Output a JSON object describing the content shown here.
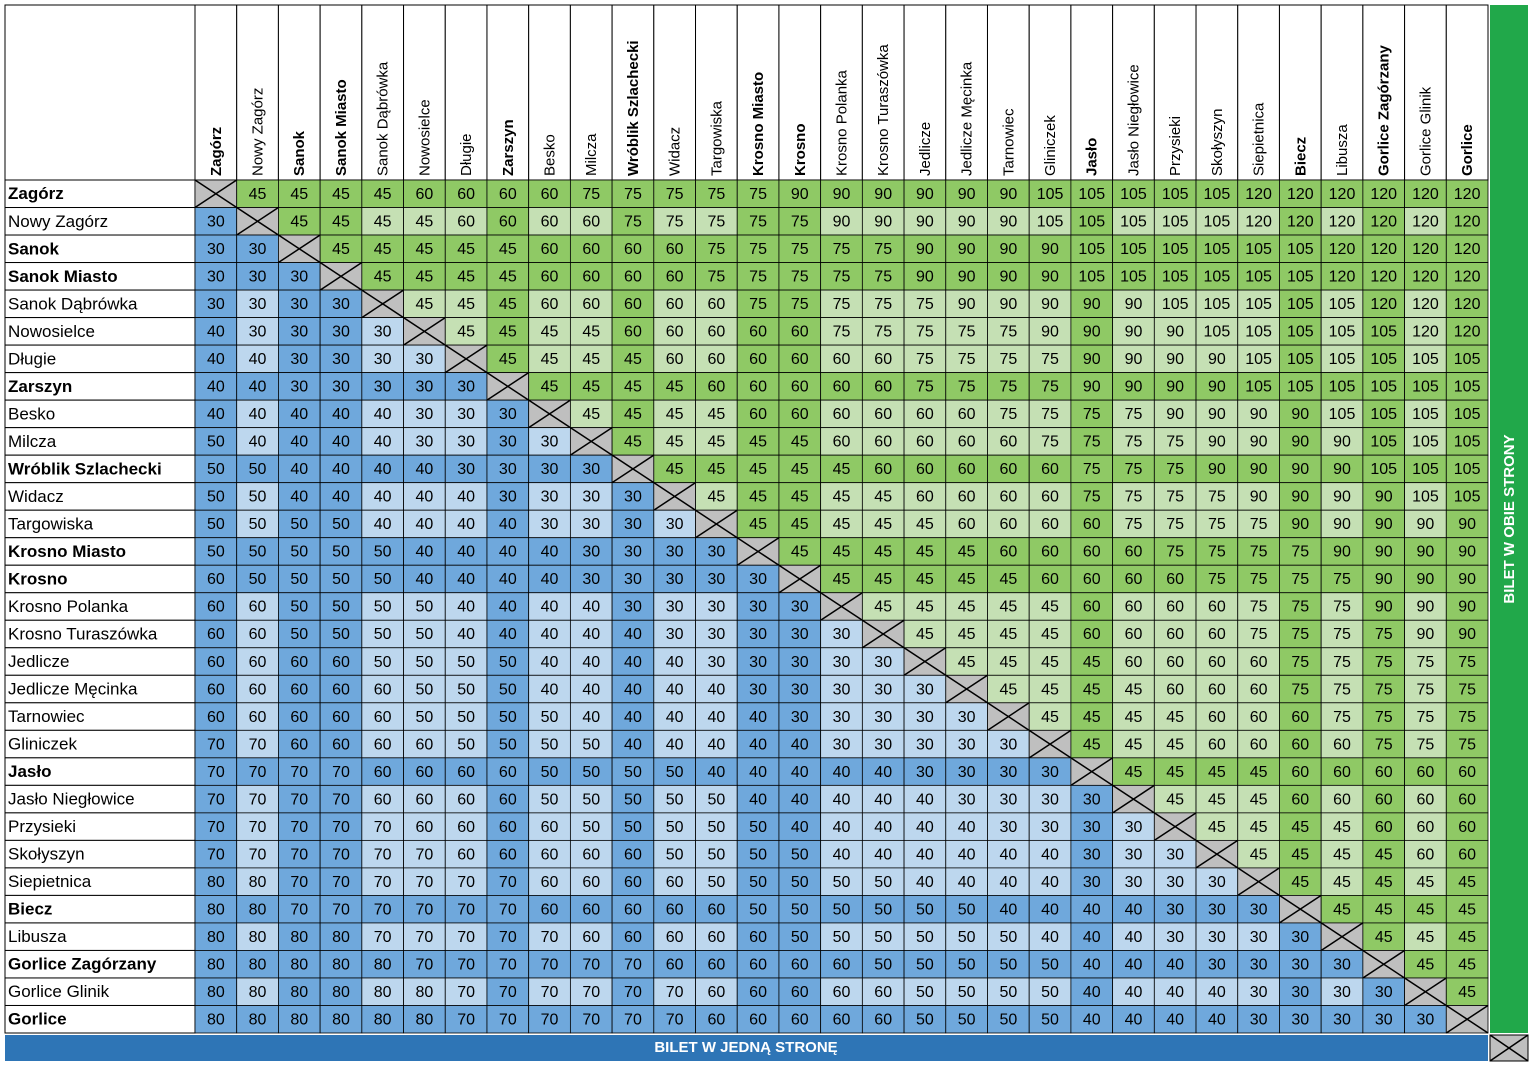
{
  "stations": [
    {
      "name": "Zagórz",
      "bold": true
    },
    {
      "name": "Nowy Zagórz",
      "bold": false
    },
    {
      "name": "Sanok",
      "bold": true
    },
    {
      "name": "Sanok Miasto",
      "bold": true
    },
    {
      "name": "Sanok Dąbrówka",
      "bold": false
    },
    {
      "name": "Nowosielce",
      "bold": false
    },
    {
      "name": "Długie",
      "bold": false
    },
    {
      "name": "Zarszyn",
      "bold": true
    },
    {
      "name": "Besko",
      "bold": false
    },
    {
      "name": "Milcza",
      "bold": false
    },
    {
      "name": "Wróblik Szlachecki",
      "bold": true
    },
    {
      "name": "Widacz",
      "bold": false
    },
    {
      "name": "Targowiska",
      "bold": false
    },
    {
      "name": "Krosno Miasto",
      "bold": true
    },
    {
      "name": "Krosno",
      "bold": true
    },
    {
      "name": "Krosno Polanka",
      "bold": false
    },
    {
      "name": "Krosno Turaszówka",
      "bold": false
    },
    {
      "name": "Jedlicze",
      "bold": false
    },
    {
      "name": "Jedlicze Męcinka",
      "bold": false
    },
    {
      "name": "Tarnowiec",
      "bold": false
    },
    {
      "name": "Gliniczek",
      "bold": false
    },
    {
      "name": "Jasło",
      "bold": true
    },
    {
      "name": "Jasło Niegłowice",
      "bold": false
    },
    {
      "name": "Przysieki",
      "bold": false
    },
    {
      "name": "Skołyszyn",
      "bold": false
    },
    {
      "name": "Siepietnica",
      "bold": false
    },
    {
      "name": "Biecz",
      "bold": true
    },
    {
      "name": "Libusza",
      "bold": false
    },
    {
      "name": "Gorlice Zagórzany",
      "bold": true
    },
    {
      "name": "Gorlice Glinik",
      "bold": false
    },
    {
      "name": "Gorlice",
      "bold": true
    }
  ],
  "rows": [
    [
      null,
      45,
      45,
      45,
      45,
      60,
      60,
      60,
      60,
      75,
      75,
      75,
      75,
      75,
      90,
      90,
      90,
      90,
      90,
      90,
      105,
      105,
      105,
      105,
      105,
      120,
      120,
      120,
      120,
      120,
      120
    ],
    [
      30,
      null,
      45,
      45,
      45,
      45,
      60,
      60,
      60,
      60,
      75,
      75,
      75,
      75,
      75,
      90,
      90,
      90,
      90,
      90,
      105,
      105,
      105,
      105,
      105,
      120,
      120,
      120,
      120,
      120,
      120
    ],
    [
      30,
      30,
      null,
      45,
      45,
      45,
      45,
      45,
      60,
      60,
      60,
      60,
      75,
      75,
      75,
      75,
      75,
      90,
      90,
      90,
      90,
      105,
      105,
      105,
      105,
      105,
      105,
      120,
      120,
      120,
      120
    ],
    [
      30,
      30,
      30,
      null,
      45,
      45,
      45,
      45,
      60,
      60,
      60,
      60,
      75,
      75,
      75,
      75,
      75,
      90,
      90,
      90,
      90,
      105,
      105,
      105,
      105,
      105,
      105,
      120,
      120,
      120,
      120
    ],
    [
      30,
      30,
      30,
      30,
      null,
      45,
      45,
      45,
      60,
      60,
      60,
      60,
      60,
      75,
      75,
      75,
      75,
      75,
      90,
      90,
      90,
      90,
      90,
      105,
      105,
      105,
      105,
      105,
      120,
      120,
      120
    ],
    [
      40,
      30,
      30,
      30,
      30,
      null,
      45,
      45,
      45,
      45,
      60,
      60,
      60,
      60,
      60,
      75,
      75,
      75,
      75,
      75,
      90,
      90,
      90,
      90,
      105,
      105,
      105,
      105,
      105,
      120,
      120
    ],
    [
      40,
      40,
      30,
      30,
      30,
      30,
      null,
      45,
      45,
      45,
      45,
      60,
      60,
      60,
      60,
      60,
      60,
      75,
      75,
      75,
      75,
      90,
      90,
      90,
      90,
      105,
      105,
      105,
      105,
      105,
      105
    ],
    [
      40,
      40,
      30,
      30,
      30,
      30,
      30,
      null,
      45,
      45,
      45,
      45,
      60,
      60,
      60,
      60,
      60,
      75,
      75,
      75,
      75,
      90,
      90,
      90,
      90,
      105,
      105,
      105,
      105,
      105,
      105
    ],
    [
      40,
      40,
      40,
      40,
      40,
      30,
      30,
      30,
      null,
      45,
      45,
      45,
      45,
      60,
      60,
      60,
      60,
      60,
      60,
      75,
      75,
      75,
      75,
      90,
      90,
      90,
      90,
      105,
      105,
      105,
      105
    ],
    [
      50,
      40,
      40,
      40,
      40,
      30,
      30,
      30,
      30,
      null,
      45,
      45,
      45,
      45,
      45,
      60,
      60,
      60,
      60,
      60,
      75,
      75,
      75,
      75,
      90,
      90,
      90,
      90,
      105,
      105,
      105
    ],
    [
      50,
      50,
      40,
      40,
      40,
      40,
      30,
      30,
      30,
      30,
      null,
      45,
      45,
      45,
      45,
      45,
      60,
      60,
      60,
      60,
      60,
      75,
      75,
      75,
      90,
      90,
      90,
      90,
      105,
      105,
      105
    ],
    [
      50,
      50,
      40,
      40,
      40,
      40,
      40,
      30,
      30,
      30,
      30,
      null,
      45,
      45,
      45,
      45,
      45,
      60,
      60,
      60,
      60,
      75,
      75,
      75,
      75,
      90,
      90,
      90,
      90,
      105,
      105
    ],
    [
      50,
      50,
      50,
      50,
      40,
      40,
      40,
      40,
      30,
      30,
      30,
      30,
      null,
      45,
      45,
      45,
      45,
      45,
      60,
      60,
      60,
      60,
      75,
      75,
      75,
      75,
      90,
      90,
      90,
      90,
      90
    ],
    [
      50,
      50,
      50,
      50,
      50,
      40,
      40,
      40,
      40,
      30,
      30,
      30,
      30,
      null,
      45,
      45,
      45,
      45,
      45,
      60,
      60,
      60,
      60,
      75,
      75,
      75,
      75,
      90,
      90,
      90,
      90
    ],
    [
      60,
      50,
      50,
      50,
      50,
      40,
      40,
      40,
      40,
      30,
      30,
      30,
      30,
      30,
      null,
      45,
      45,
      45,
      45,
      45,
      60,
      60,
      60,
      60,
      75,
      75,
      75,
      75,
      90,
      90,
      90
    ],
    [
      60,
      60,
      50,
      50,
      50,
      50,
      40,
      40,
      40,
      40,
      30,
      30,
      30,
      30,
      30,
      null,
      45,
      45,
      45,
      45,
      45,
      60,
      60,
      60,
      60,
      75,
      75,
      75,
      90,
      90,
      90
    ],
    [
      60,
      60,
      50,
      50,
      50,
      50,
      40,
      40,
      40,
      40,
      40,
      30,
      30,
      30,
      30,
      30,
      null,
      45,
      45,
      45,
      45,
      60,
      60,
      60,
      60,
      75,
      75,
      75,
      75,
      90,
      90
    ],
    [
      60,
      60,
      60,
      60,
      50,
      50,
      50,
      50,
      40,
      40,
      40,
      40,
      30,
      30,
      30,
      30,
      30,
      null,
      45,
      45,
      45,
      45,
      60,
      60,
      60,
      60,
      75,
      75,
      75,
      75,
      75
    ],
    [
      60,
      60,
      60,
      60,
      60,
      50,
      50,
      50,
      40,
      40,
      40,
      40,
      40,
      30,
      30,
      30,
      30,
      30,
      null,
      45,
      45,
      45,
      45,
      60,
      60,
      60,
      75,
      75,
      75,
      75,
      75
    ],
    [
      60,
      60,
      60,
      60,
      60,
      50,
      50,
      50,
      50,
      40,
      40,
      40,
      40,
      40,
      30,
      30,
      30,
      30,
      30,
      null,
      45,
      45,
      45,
      45,
      60,
      60,
      60,
      75,
      75,
      75,
      75
    ],
    [
      70,
      70,
      60,
      60,
      60,
      60,
      50,
      50,
      50,
      50,
      40,
      40,
      40,
      40,
      40,
      30,
      30,
      30,
      30,
      30,
      null,
      45,
      45,
      45,
      60,
      60,
      60,
      60,
      75,
      75,
      75
    ],
    [
      70,
      70,
      70,
      70,
      60,
      60,
      60,
      60,
      50,
      50,
      50,
      50,
      40,
      40,
      40,
      40,
      40,
      30,
      30,
      30,
      30,
      null,
      45,
      45,
      45,
      45,
      60,
      60,
      60,
      60,
      60
    ],
    [
      70,
      70,
      70,
      70,
      60,
      60,
      60,
      60,
      50,
      50,
      50,
      50,
      50,
      40,
      40,
      40,
      40,
      40,
      30,
      30,
      30,
      30,
      null,
      45,
      45,
      45,
      60,
      60,
      60,
      60,
      60
    ],
    [
      70,
      70,
      70,
      70,
      70,
      60,
      60,
      60,
      60,
      50,
      50,
      50,
      50,
      50,
      40,
      40,
      40,
      40,
      40,
      30,
      30,
      30,
      30,
      null,
      45,
      45,
      45,
      45,
      60,
      60,
      60
    ],
    [
      70,
      70,
      70,
      70,
      70,
      70,
      60,
      60,
      60,
      60,
      60,
      50,
      50,
      50,
      50,
      40,
      40,
      40,
      40,
      40,
      40,
      30,
      30,
      30,
      null,
      45,
      45,
      45,
      45,
      60,
      60
    ],
    [
      80,
      80,
      70,
      70,
      70,
      70,
      70,
      70,
      60,
      60,
      60,
      60,
      50,
      50,
      50,
      50,
      50,
      40,
      40,
      40,
      40,
      30,
      30,
      30,
      30,
      null,
      45,
      45,
      45,
      45,
      45
    ],
    [
      80,
      80,
      70,
      70,
      70,
      70,
      70,
      70,
      60,
      60,
      60,
      60,
      60,
      50,
      50,
      50,
      50,
      50,
      50,
      40,
      40,
      40,
      40,
      30,
      30,
      30,
      null,
      45,
      45,
      45,
      45
    ],
    [
      80,
      80,
      80,
      80,
      70,
      70,
      70,
      70,
      70,
      60,
      60,
      60,
      60,
      60,
      50,
      50,
      50,
      50,
      50,
      50,
      40,
      40,
      40,
      30,
      30,
      30,
      30,
      null,
      45,
      45,
      45
    ],
    [
      80,
      80,
      80,
      80,
      80,
      70,
      70,
      70,
      70,
      70,
      70,
      60,
      60,
      60,
      60,
      60,
      50,
      50,
      50,
      50,
      50,
      40,
      40,
      40,
      30,
      30,
      30,
      30,
      null,
      45,
      45
    ],
    [
      80,
      80,
      80,
      80,
      80,
      80,
      70,
      70,
      70,
      70,
      70,
      70,
      60,
      60,
      60,
      60,
      60,
      50,
      50,
      50,
      50,
      40,
      40,
      40,
      40,
      30,
      30,
      30,
      30,
      null,
      45
    ],
    [
      80,
      80,
      80,
      80,
      80,
      80,
      70,
      70,
      70,
      70,
      70,
      70,
      60,
      60,
      60,
      60,
      60,
      50,
      50,
      50,
      50,
      40,
      40,
      40,
      40,
      30,
      30,
      30,
      30,
      30,
      null
    ]
  ],
  "labels": {
    "one_way": "BILET W JEDNĄ STRONĘ",
    "both_ways": "BILET W OBIE STRONY"
  }
}
